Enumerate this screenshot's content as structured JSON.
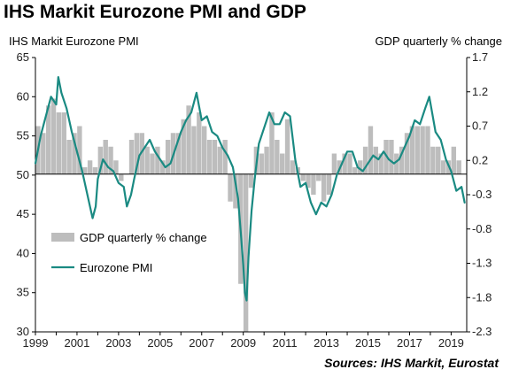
{
  "chart_data": {
    "type": "bar+line",
    "title": "IHS Markit Eurozone PMI and GDP",
    "left_axis_label": "IHS Markit Eurozone PMI",
    "right_axis_label": "GDP quarterly % change",
    "source": "Sources: IHS Markit, Eurostat",
    "left_ylim": [
      30,
      65
    ],
    "left_ticks": [
      "30",
      "35",
      "40",
      "45",
      "50",
      "55",
      "60",
      "65"
    ],
    "right_ylim": [
      -2.3,
      1.7
    ],
    "right_ticks": [
      "-2.3",
      "-1.8",
      "-1.3",
      "-0.8",
      "-0.3",
      "0.2",
      "0.7",
      "1.2",
      "1.7"
    ],
    "xlim": [
      1999.0,
      2019.75
    ],
    "x_ticks": [
      "1999",
      "2001",
      "2003",
      "2005",
      "2007",
      "2009",
      "2011",
      "2013",
      "2015",
      "2017",
      "2019"
    ],
    "grid": false,
    "legend_position": "bottom-left inside",
    "colors": {
      "bars": "#bdbdbd",
      "line": "#1a8a82",
      "axis": "#000000"
    },
    "series": [
      {
        "name": "GDP quarterly % change",
        "kind": "bar",
        "axis": "right",
        "x": [
          1999.125,
          1999.375,
          1999.625,
          1999.875,
          2000.125,
          2000.375,
          2000.625,
          2000.875,
          2001.125,
          2001.375,
          2001.625,
          2001.875,
          2002.125,
          2002.375,
          2002.625,
          2002.875,
          2003.125,
          2003.375,
          2003.625,
          2003.875,
          2004.125,
          2004.375,
          2004.625,
          2004.875,
          2005.125,
          2005.375,
          2005.625,
          2005.875,
          2006.125,
          2006.375,
          2006.625,
          2006.875,
          2007.125,
          2007.375,
          2007.625,
          2007.875,
          2008.125,
          2008.375,
          2008.625,
          2008.875,
          2009.125,
          2009.375,
          2009.625,
          2009.875,
          2010.125,
          2010.375,
          2010.625,
          2010.875,
          2011.125,
          2011.375,
          2011.625,
          2011.875,
          2012.125,
          2012.375,
          2012.625,
          2012.875,
          2013.125,
          2013.375,
          2013.625,
          2013.875,
          2014.125,
          2014.375,
          2014.625,
          2014.875,
          2015.125,
          2015.375,
          2015.625,
          2015.875,
          2016.125,
          2016.375,
          2016.625,
          2016.875,
          2017.125,
          2017.375,
          2017.625,
          2017.875,
          2018.125,
          2018.375,
          2018.625,
          2018.875,
          2019.125,
          2019.375
        ],
        "values": [
          0.7,
          0.6,
          1.0,
          1.1,
          0.9,
          0.9,
          0.5,
          0.6,
          0.7,
          0.1,
          0.2,
          0.1,
          0.4,
          0.5,
          0.4,
          0.2,
          -0.1,
          0.0,
          0.5,
          0.6,
          0.6,
          0.4,
          0.3,
          0.4,
          0.2,
          0.5,
          0.6,
          0.6,
          0.8,
          1.0,
          0.7,
          0.9,
          0.7,
          0.5,
          0.5,
          0.4,
          0.5,
          -0.4,
          -0.5,
          -1.6,
          -2.3,
          -0.2,
          0.4,
          0.3,
          0.4,
          0.9,
          0.5,
          0.3,
          0.8,
          0.2,
          0.1,
          -0.1,
          -0.2,
          -0.3,
          -0.1,
          -0.4,
          -0.3,
          0.3,
          0.2,
          0.3,
          0.3,
          0.1,
          0.2,
          0.4,
          0.7,
          0.4,
          0.3,
          0.5,
          0.5,
          0.3,
          0.4,
          0.6,
          0.7,
          0.7,
          0.7,
          0.7,
          0.4,
          0.4,
          0.2,
          0.2,
          0.4,
          0.2
        ]
      },
      {
        "name": "Eurozone PMI",
        "kind": "line",
        "axis": "left",
        "x": [
          1999.0,
          1999.25,
          1999.5,
          1999.75,
          2000.0,
          2000.1,
          2000.25,
          2000.5,
          2000.75,
          2001.0,
          2001.25,
          2001.5,
          2001.75,
          2001.9,
          2002.0,
          2002.25,
          2002.5,
          2002.75,
          2003.0,
          2003.25,
          2003.4,
          2003.6,
          2003.75,
          2004.0,
          2004.25,
          2004.5,
          2004.75,
          2005.0,
          2005.25,
          2005.5,
          2005.75,
          2006.0,
          2006.25,
          2006.5,
          2006.75,
          2007.0,
          2007.25,
          2007.5,
          2007.75,
          2008.0,
          2008.25,
          2008.5,
          2008.75,
          2008.9,
          2009.0,
          2009.08,
          2009.16,
          2009.25,
          2009.4,
          2009.55,
          2009.75,
          2010.0,
          2010.25,
          2010.5,
          2010.75,
          2011.0,
          2011.25,
          2011.5,
          2011.75,
          2012.0,
          2012.25,
          2012.5,
          2012.75,
          2013.0,
          2013.25,
          2013.5,
          2013.75,
          2014.0,
          2014.25,
          2014.5,
          2014.75,
          2015.0,
          2015.25,
          2015.5,
          2015.75,
          2016.0,
          2016.25,
          2016.5,
          2016.75,
          2017.0,
          2017.25,
          2017.5,
          2017.75,
          2017.95,
          2018.25,
          2018.5,
          2018.75,
          2019.0,
          2019.25,
          2019.5,
          2019.65
        ],
        "values": [
          51.5,
          55.0,
          57.5,
          60.0,
          59.0,
          62.5,
          60.5,
          58.5,
          55.5,
          53.0,
          50.5,
          47.5,
          44.5,
          46.0,
          49.5,
          52.0,
          51.0,
          50.5,
          49.0,
          48.5,
          46.0,
          47.5,
          49.5,
          52.5,
          53.5,
          54.5,
          53.0,
          52.0,
          51.0,
          51.5,
          53.5,
          55.5,
          57.0,
          58.0,
          60.5,
          57.0,
          57.5,
          55.5,
          55.0,
          53.5,
          52.5,
          51.0,
          47.0,
          42.0,
          38.5,
          35.0,
          34.0,
          39.5,
          45.5,
          49.5,
          54.0,
          56.0,
          58.0,
          56.5,
          56.5,
          58.0,
          57.5,
          52.0,
          48.5,
          49.0,
          46.5,
          45.0,
          46.5,
          46.0,
          47.5,
          50.0,
          51.5,
          53.0,
          53.0,
          51.0,
          50.5,
          51.5,
          52.5,
          52.0,
          53.0,
          52.0,
          51.5,
          52.0,
          53.5,
          55.0,
          57.0,
          56.5,
          58.5,
          60.0,
          55.5,
          54.5,
          52.0,
          50.5,
          48.0,
          48.5,
          46.5
        ]
      }
    ]
  }
}
